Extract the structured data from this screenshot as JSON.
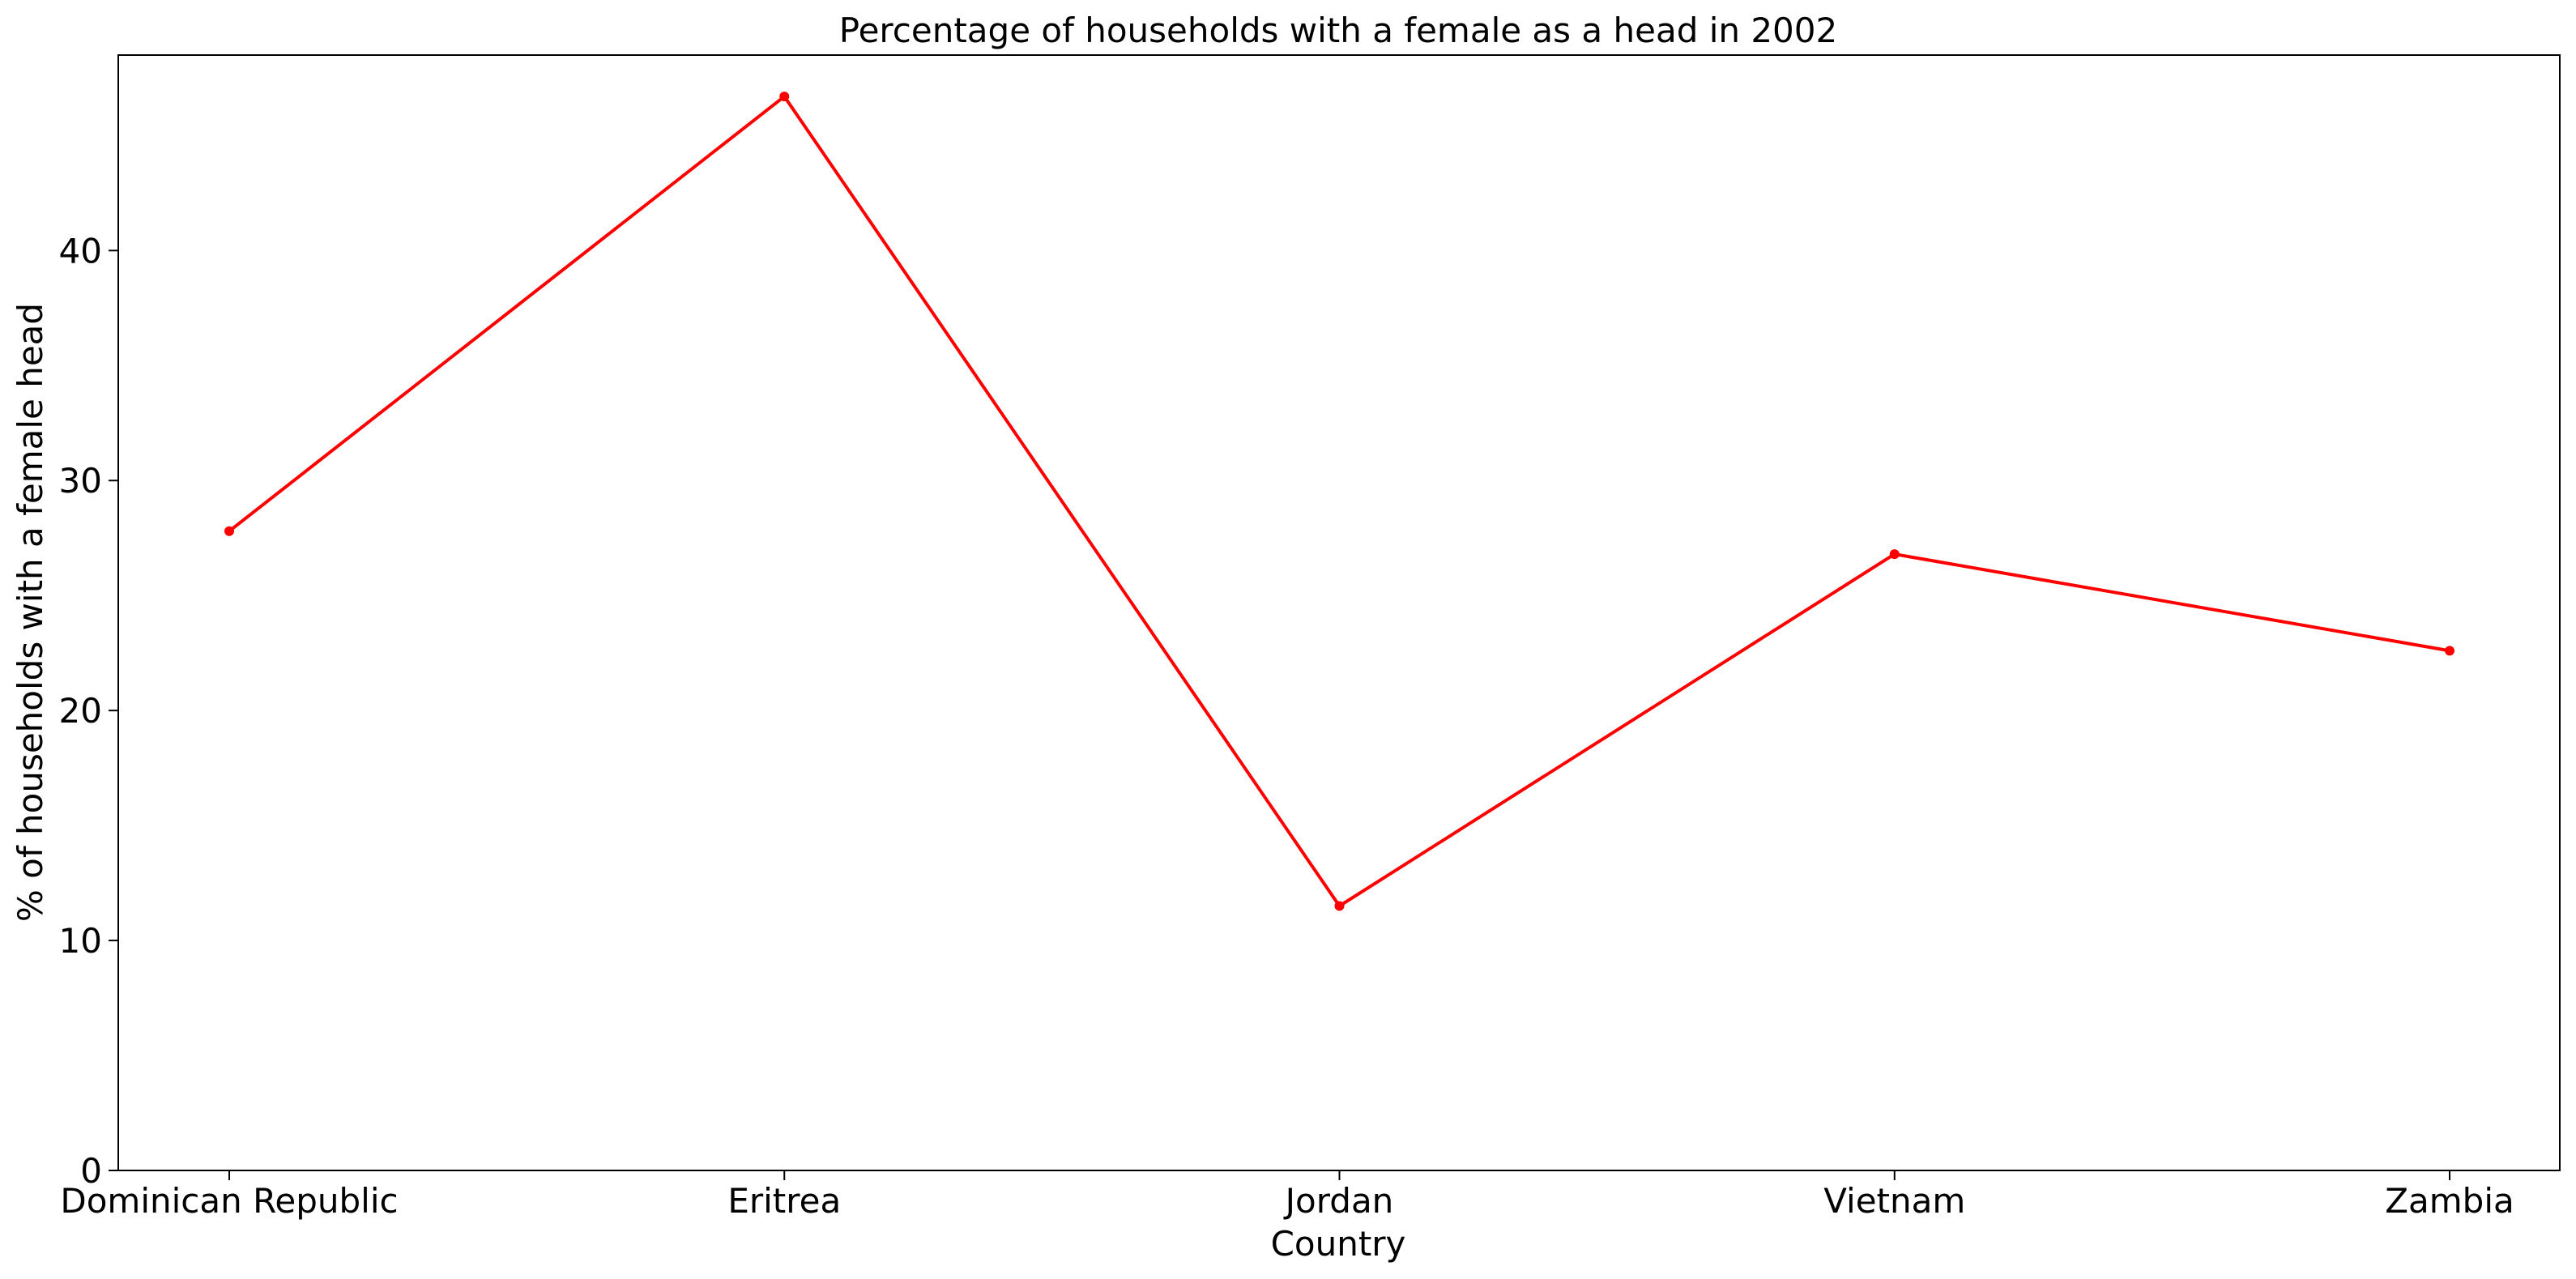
{
  "chart_data": {
    "type": "line",
    "title": "Percentage of households with a female as a head in 2002",
    "xlabel": "Country",
    "ylabel": "% of households with a female head",
    "categories": [
      "Dominican Republic",
      "Eritrea",
      "Jordan",
      "Vietnam",
      "Zambia"
    ],
    "series": [
      {
        "values": [
          27.8,
          46.7,
          11.5,
          26.8,
          22.6
        ],
        "color": "#ff0000",
        "marker": "circle"
      }
    ],
    "ylim": [
      0,
      48.5
    ],
    "yticks": [
      0,
      10,
      20,
      30,
      40
    ],
    "grid": false,
    "legend": "none"
  }
}
